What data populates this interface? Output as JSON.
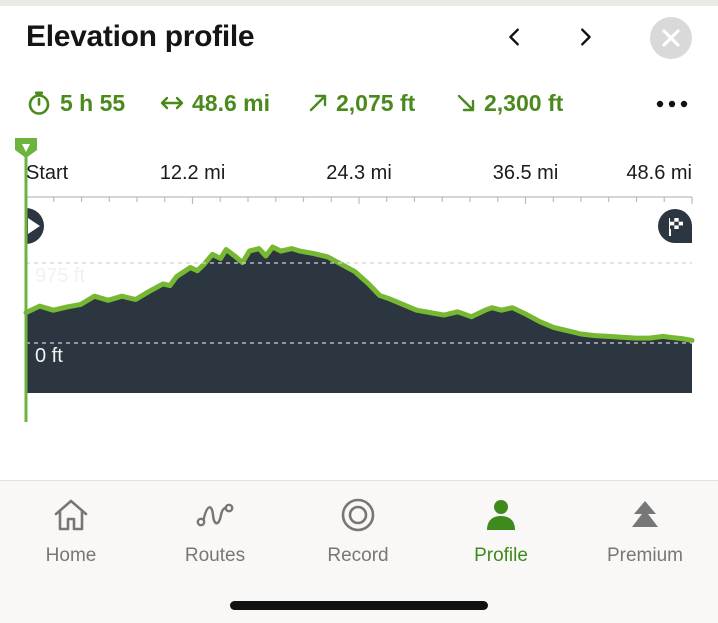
{
  "header": {
    "title": "Elevation profile",
    "prev_icon": "chevron-left-icon",
    "next_icon": "chevron-right-icon",
    "close_icon": "close-icon"
  },
  "stats": {
    "duration": "5 h 55",
    "distance": "48.6 mi",
    "ascent": "2,075 ft",
    "descent": "2,300 ft",
    "more_icon": "more-icon"
  },
  "chart_data": {
    "type": "area",
    "x_ticks": [
      "Start",
      "12.2 mi",
      "24.3 mi",
      "36.5 mi",
      "48.6 mi"
    ],
    "y_labels": [
      "975 ft",
      "0 ft"
    ],
    "xlim": [
      0,
      48.6
    ],
    "series": [
      {
        "x": [
          0,
          1,
          2,
          3,
          4,
          5,
          6,
          7,
          8,
          9,
          10,
          10.5,
          11,
          12,
          12.5,
          13,
          13.6,
          14.2,
          14.6,
          15.3,
          15.8,
          16.3,
          17,
          17.5,
          18,
          18.6,
          19.4,
          20,
          21,
          22,
          23,
          24,
          25,
          25.8,
          26.5,
          27.5,
          28.5,
          29.5,
          30.5,
          31.5,
          32.5,
          33.5,
          34,
          34.7,
          35.5,
          36.5,
          37.5,
          38.5,
          39.5,
          40.5,
          41.5,
          42.5,
          43.5,
          44.5,
          45.5,
          46.5,
          47,
          48,
          48.6
        ],
        "values": [
          370,
          450,
          400,
          440,
          470,
          570,
          520,
          570,
          530,
          630,
          720,
          700,
          810,
          920,
          880,
          960,
          1080,
          1030,
          1140,
          1050,
          980,
          1120,
          1150,
          1060,
          1170,
          1120,
          1150,
          1120,
          1090,
          1050,
          960,
          870,
          720,
          580,
          540,
          470,
          400,
          370,
          340,
          380,
          320,
          400,
          430,
          400,
          430,
          350,
          260,
          190,
          150,
          110,
          90,
          80,
          70,
          60,
          60,
          80,
          70,
          50,
          30
        ]
      }
    ],
    "colors": {
      "fill": "#2b3640",
      "line": "#76b832",
      "grid": "#cfd3d6"
    },
    "start_marker_icon": "start-flag-icon",
    "end_marker_icon": "finish-flag-icon",
    "position_marker_icon": "position-marker-icon"
  },
  "tabbar": {
    "items": [
      {
        "label": "Home",
        "icon": "home-icon"
      },
      {
        "label": "Routes",
        "icon": "routes-icon"
      },
      {
        "label": "Record",
        "icon": "record-icon"
      },
      {
        "label": "Profile",
        "icon": "profile-icon",
        "active": true
      },
      {
        "label": "Premium",
        "icon": "premium-icon"
      }
    ]
  },
  "colors": {
    "accent": "#4a8a1c",
    "inactive": "#777777"
  }
}
